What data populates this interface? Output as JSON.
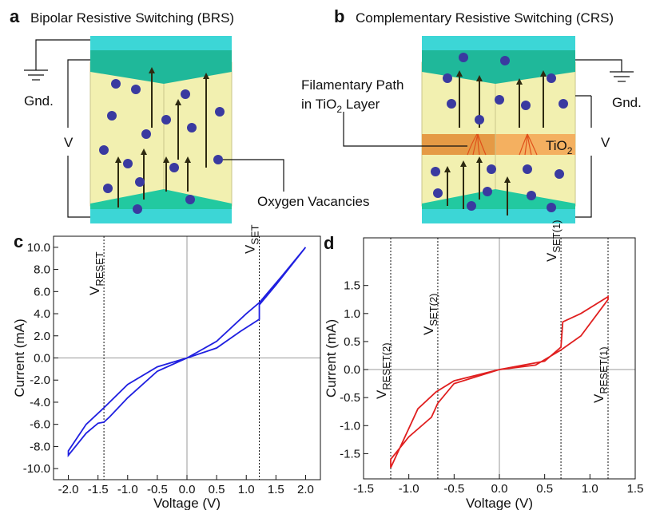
{
  "diagrams": {
    "a": {
      "label": "a",
      "title": "Bipolar Resistive Switching (BRS)",
      "gnd": "Gnd.",
      "v": "V",
      "callout": "Oxygen Vacancies"
    },
    "b": {
      "label": "b",
      "title": "Complementary Resistive Switching (CRS)",
      "filament_line1": "Filamentary Path",
      "filament_line2": {
        "pre": "in TiO",
        "sub": "2",
        "post": " Layer"
      },
      "layer": {
        "text": "TiO",
        "sub": "2"
      },
      "gnd": "Gnd.",
      "v": "V"
    }
  },
  "chart_data": [
    {
      "type": "line",
      "panel_label": "c",
      "xlabel": "Voltage (V)",
      "ylabel": "Current (mA)",
      "xlim": [
        -2.25,
        2.25
      ],
      "ylim": [
        -11,
        11
      ],
      "xticks": [
        {
          "value": -2,
          "label": "-2.0"
        },
        {
          "value": -1.5,
          "label": "-1.5"
        },
        {
          "value": -1,
          "label": "-1.0"
        },
        {
          "value": -0.5,
          "label": "-0.5"
        },
        {
          "value": 0,
          "label": "0.0"
        },
        {
          "value": 0.5,
          "label": "0.5"
        },
        {
          "value": 1,
          "label": "1.0"
        },
        {
          "value": 1.5,
          "label": "1.5"
        },
        {
          "value": 2,
          "label": "2.0"
        }
      ],
      "yticks": [
        {
          "value": 10,
          "label": "10.0"
        },
        {
          "value": 8,
          "label": "8.0"
        },
        {
          "value": 6,
          "label": "6.0"
        },
        {
          "value": 4,
          "label": "4.0"
        },
        {
          "value": 2,
          "label": "2.0"
        },
        {
          "value": 0,
          "label": "0.0"
        },
        {
          "value": -2,
          "label": "-2.0"
        },
        {
          "value": -4,
          "label": "-4.0"
        },
        {
          "value": -6,
          "label": "-6.0"
        },
        {
          "value": -8,
          "label": "-8.0"
        },
        {
          "value": -10,
          "label": "-10.0"
        }
      ],
      "zero_lines": true,
      "series": [
        {
          "color": "#1f1fe0",
          "x": [
            0,
            -0.5,
            -1.0,
            -1.3,
            -1.4,
            -1.5,
            -1.7,
            -2.0,
            -2.0,
            -1.7,
            -1.4,
            -1.0,
            -0.5,
            0,
            0.5,
            0.9,
            1.22,
            1.22,
            1.5,
            2.0,
            1.6,
            1.22,
            1.0,
            0.5,
            0
          ],
          "values": [
            0,
            -1.2,
            -3.6,
            -5.3,
            -5.8,
            -5.9,
            -6.8,
            -8.8,
            -8.4,
            -6.0,
            -4.5,
            -2.4,
            -0.8,
            0,
            0.9,
            2.4,
            3.5,
            4.8,
            6.6,
            10.0,
            7.4,
            5.0,
            4.0,
            1.5,
            0
          ]
        }
      ],
      "markers": [
        {
          "x": -1.4,
          "text": "V",
          "sub": "RESET"
        },
        {
          "x": 1.22,
          "text": "V",
          "sub": "SET"
        }
      ]
    },
    {
      "type": "line",
      "panel_label": "d",
      "xlabel": "Voltage (V)",
      "ylabel": "Current (mA)",
      "xlim": [
        -1.5,
        1.5
      ],
      "ylim": [
        -1.95,
        2.35
      ],
      "xticks": [
        -1.5,
        {
          "value": -1,
          "label": "-1.0"
        },
        -0.5,
        {
          "value": 0,
          "label": "0.0"
        },
        0.5,
        {
          "value": 1,
          "label": "1.0"
        },
        1.5
      ],
      "yticks": [
        1.5,
        {
          "value": 1,
          "label": "1.0"
        },
        0.5,
        {
          "value": 0,
          "label": "0.0"
        },
        -0.5,
        {
          "value": -1,
          "label": "-1.0"
        },
        -1.5
      ],
      "zero_lines": true,
      "series": [
        {
          "color": "#e01f1f",
          "x": [
            0,
            0.4,
            0.68,
            0.9,
            1.2,
            1.2,
            0.9,
            0.7,
            0.68,
            0.5,
            0,
            -0.5,
            -0.7,
            -0.9,
            -1.2,
            -1.2,
            -1.0,
            -0.75,
            -0.68,
            -0.5,
            0
          ],
          "values": [
            0,
            0.08,
            0.35,
            0.6,
            1.25,
            1.3,
            1.0,
            0.85,
            0.4,
            0.15,
            0,
            -0.2,
            -0.4,
            -0.7,
            -1.75,
            -1.6,
            -1.2,
            -0.85,
            -0.6,
            -0.25,
            0
          ]
        }
      ],
      "markers": [
        {
          "x": -1.2,
          "text": "V",
          "sub": "RESET(2)"
        },
        {
          "x": -0.68,
          "text": "V",
          "sub": "SET(2)"
        },
        {
          "x": 0.68,
          "text": "V",
          "sub": "SET(1)"
        },
        {
          "x": 1.2,
          "text": "V",
          "sub": "RESET(1)"
        }
      ]
    }
  ]
}
